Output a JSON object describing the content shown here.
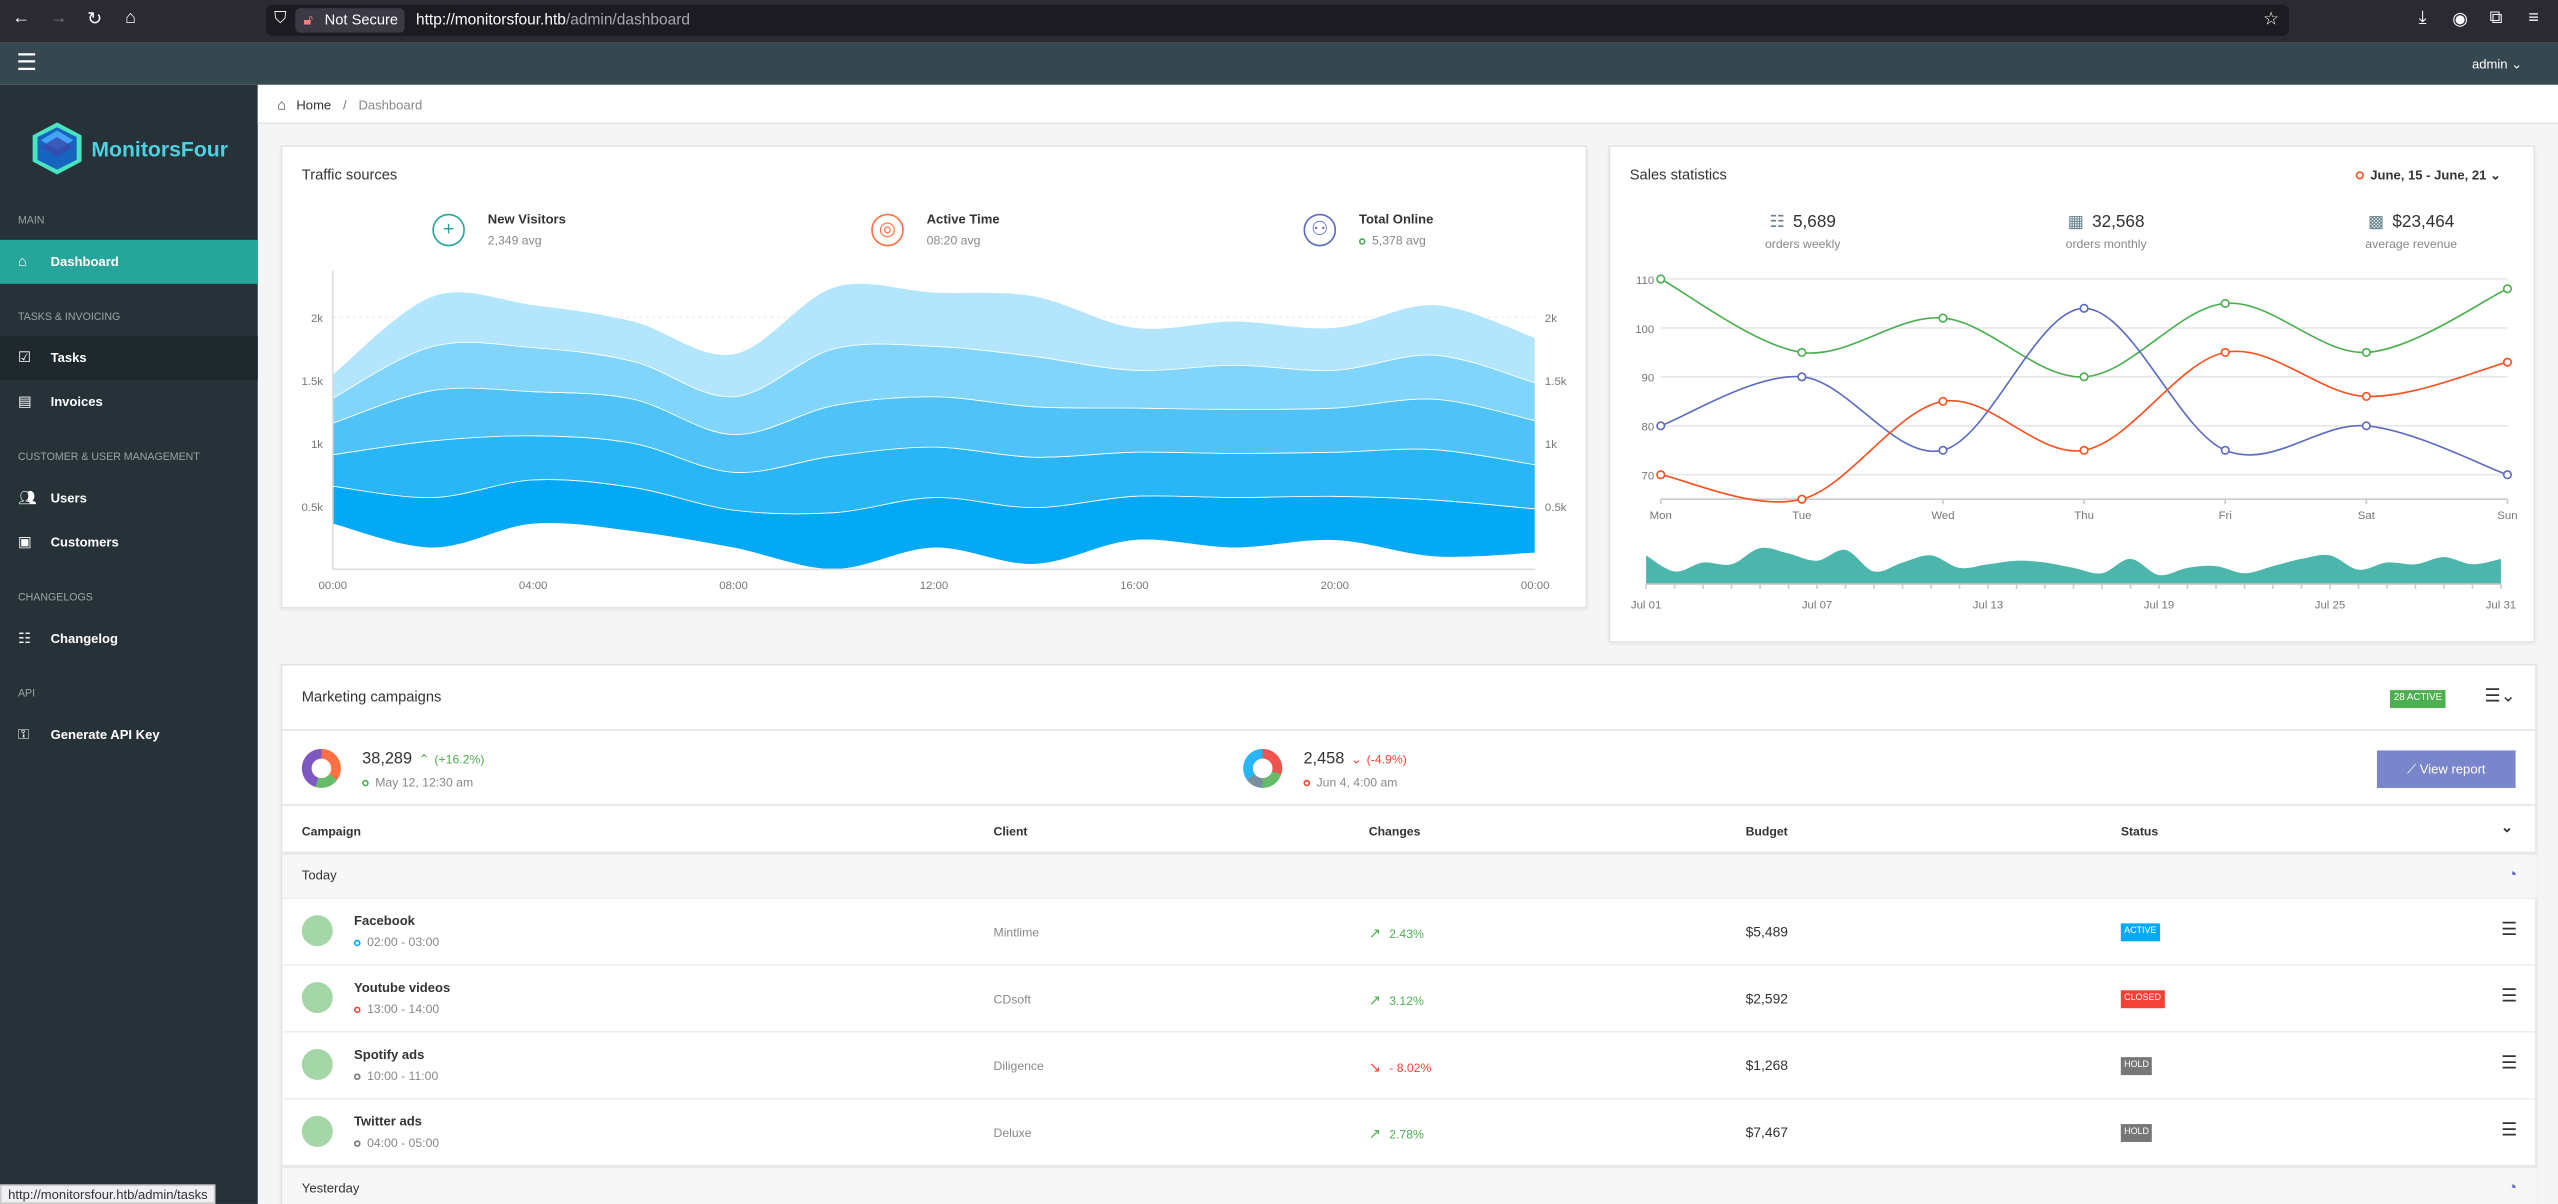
{
  "browser": {
    "not_secure": "Not Secure",
    "url_host": "http://monitorsfour.htb",
    "url_path": "/admin/dashboard",
    "status_url": "http://monitorsfour.htb/admin/tasks"
  },
  "topnav": {
    "user": "admin"
  },
  "brand": {
    "name": "MonitorsFour"
  },
  "sidebar": {
    "groups": [
      {
        "heading": "Main",
        "items": [
          {
            "label": "Dashboard",
            "icon": "home-icon",
            "active": true
          }
        ]
      },
      {
        "heading": "Tasks & Invoicing",
        "items": [
          {
            "label": "Tasks",
            "icon": "checkbox-icon"
          },
          {
            "label": "Invoices",
            "icon": "invoice-icon"
          }
        ]
      },
      {
        "heading": "Customer & User Management",
        "items": [
          {
            "label": "Users",
            "icon": "users-icon"
          },
          {
            "label": "Customers",
            "icon": "briefcase-icon"
          }
        ]
      },
      {
        "heading": "Changelogs",
        "items": [
          {
            "label": "Changelog",
            "icon": "list-icon"
          }
        ]
      },
      {
        "heading": "API",
        "items": [
          {
            "label": "Generate API Key",
            "icon": "key-icon"
          }
        ]
      }
    ]
  },
  "breadcrumb": {
    "home": "Home",
    "current": "Dashboard"
  },
  "traffic": {
    "title": "Traffic sources",
    "stats": [
      {
        "label": "New Visitors",
        "value": "2,349 avg",
        "icon": "plus-icon",
        "color": "#26a69a"
      },
      {
        "label": "Active Time",
        "value": "08:20 avg",
        "icon": "watch-icon",
        "color": "#ff7043"
      },
      {
        "label": "Total Online",
        "value": "5,378 avg",
        "icon": "people-icon",
        "color": "#5c6bc0"
      }
    ]
  },
  "sales": {
    "title": "Sales statistics",
    "range": "June, 15 - June, 21",
    "stats": [
      {
        "value": "5,689",
        "label": "orders weekly",
        "icon": "list-icon"
      },
      {
        "value": "32,568",
        "label": "orders monthly",
        "icon": "calendar-icon"
      },
      {
        "value": "$23,464",
        "label": "average revenue",
        "icon": "cash-icon"
      }
    ]
  },
  "chart_data": [
    {
      "type": "area",
      "stacked": true,
      "x": [
        "00:00",
        "02:00",
        "04:00",
        "06:00",
        "08:00",
        "10:00",
        "12:00",
        "14:00",
        "16:00",
        "18:00",
        "20:00",
        "22:00",
        "00:00"
      ],
      "xticks": [
        "00:00",
        "04:00",
        "08:00",
        "12:00",
        "16:00",
        "20:00",
        "00:00"
      ],
      "yticks": [
        "0.5k",
        "1k",
        "1.5k",
        "2k"
      ],
      "ylim": [
        0,
        2240
      ],
      "baseline": [
        360,
        170,
        360,
        300,
        170,
        0,
        170,
        40,
        230,
        170,
        230,
        100,
        130
      ],
      "series": [
        {
          "values": [
            300,
            400,
            350,
            350,
            300,
            450,
            400,
            450,
            350,
            400,
            350,
            450,
            350
          ]
        },
        {
          "values": [
            250,
            450,
            350,
            350,
            300,
            450,
            400,
            400,
            350,
            350,
            350,
            400,
            350
          ]
        },
        {
          "values": [
            250,
            400,
            350,
            350,
            300,
            400,
            400,
            400,
            350,
            350,
            350,
            400,
            350
          ]
        },
        {
          "values": [
            200,
            350,
            350,
            300,
            300,
            450,
            400,
            400,
            300,
            350,
            300,
            350,
            300
          ]
        },
        {
          "values": [
            190,
            400,
            340,
            320,
            340,
            490,
            430,
            480,
            340,
            350,
            340,
            400,
            360
          ]
        }
      ],
      "colors": [
        "#03a9f4",
        "#29b6f6",
        "#4fc3f7",
        "#81d4fa",
        "#b3e5fc"
      ],
      "grid": true
    },
    {
      "type": "line",
      "categories": [
        "Mon",
        "Tue",
        "Wed",
        "Thu",
        "Fri",
        "Sat",
        "Sun"
      ],
      "yticks": [
        70,
        80,
        90,
        100,
        110
      ],
      "ylim": [
        65,
        110
      ],
      "series": [
        {
          "color": "#4caf50",
          "values": [
            110,
            95,
            102,
            90,
            105,
            95,
            108
          ]
        },
        {
          "color": "#5c6bc0",
          "values": [
            80,
            90,
            75,
            104,
            75,
            80,
            70
          ]
        },
        {
          "color": "#f4511e",
          "values": [
            70,
            65,
            85,
            75,
            95,
            86,
            93
          ]
        }
      ],
      "grid": true
    },
    {
      "type": "area",
      "xticks": [
        "Jul 01",
        "Jul 07",
        "Jul 13",
        "Jul 19",
        "Jul 25",
        "Jul 31"
      ],
      "color": "#4db6ac",
      "values": [
        0.8,
        0.35,
        0.6,
        0.55,
        1.0,
        0.85,
        0.65,
        0.95,
        0.35,
        0.6,
        0.8,
        0.45,
        0.55,
        0.65,
        0.6,
        0.45,
        0.3,
        0.7,
        0.25,
        0.45,
        0.5,
        0.3,
        0.5,
        0.7,
        0.8,
        0.4,
        0.6,
        0.55,
        0.75,
        0.55,
        0.7
      ]
    }
  ],
  "marketing": {
    "title": "Marketing campaigns",
    "active_badge": "28 active",
    "summary": [
      {
        "value": "38,289",
        "change": "(+16.2%)",
        "dir": "up",
        "date": "May 12, 12:30 am",
        "dot": "#4caf50",
        "donut": "conic-gradient(#ff7043 0 35%,#66bb6a 35% 55%,#7e57c2 55% 100%)"
      },
      {
        "value": "2,458",
        "change": "(-4.9%)",
        "dir": "down",
        "date": "Jun 4, 4:00 am",
        "dot": "#f44336",
        "donut": "conic-gradient(#ef5350 0 30%,#66bb6a 30% 50%,#78909c 50% 65%,#29b6f6 65% 100%)"
      }
    ],
    "view_report": "View report",
    "columns": [
      "Campaign",
      "Client",
      "Changes",
      "Budget",
      "Status"
    ],
    "groups": [
      {
        "label": "Today",
        "rows": [
          {
            "name": "Facebook",
            "time": "02:00 - 03:00",
            "dot": "#03a9f4",
            "client": "Mintlime",
            "change": "2.43%",
            "dir": "up",
            "budget": "$5,489",
            "status": "Active",
            "status_color": "#03a9f4"
          },
          {
            "name": "Youtube videos",
            "time": "13:00 - 14:00",
            "dot": "#f44336",
            "client": "CDsoft",
            "change": "3.12%",
            "dir": "up",
            "budget": "$2,592",
            "status": "Closed",
            "status_color": "#f44336"
          },
          {
            "name": "Spotify ads",
            "time": "10:00 - 11:00",
            "dot": "#777777",
            "client": "Diligence",
            "change": "- 8.02%",
            "dir": "down",
            "budget": "$1,268",
            "status": "Hold",
            "status_color": "#777777"
          },
          {
            "name": "Twitter ads",
            "time": "04:00 - 05:00",
            "dot": "#777777",
            "client": "Deluxe",
            "change": "2.78%",
            "dir": "up",
            "budget": "$7,467",
            "status": "Hold",
            "status_color": "#777777"
          }
        ]
      },
      {
        "label": "Yesterday",
        "rows": []
      }
    ]
  }
}
